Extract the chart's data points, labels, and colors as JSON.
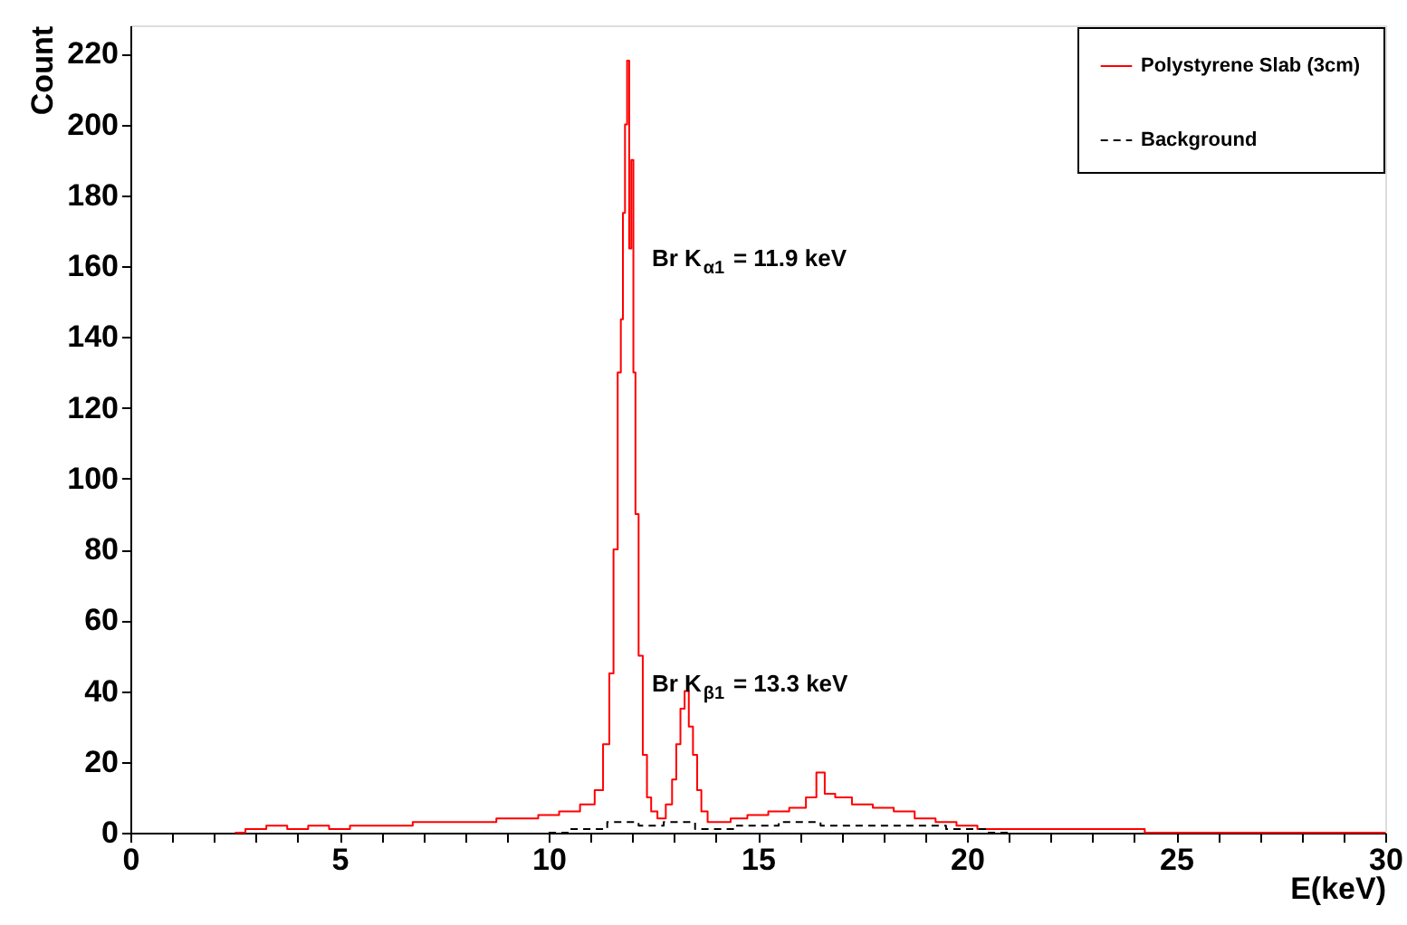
{
  "chart_data": {
    "type": "step",
    "xlabel": "E(keV)",
    "ylabel": "Count",
    "xlim": [
      0,
      30
    ],
    "ylim": [
      0,
      228
    ],
    "xticks": [
      0,
      {
        "value": 1,
        "label": null
      },
      {
        "value": 2,
        "label": null
      },
      {
        "value": 3,
        "label": null
      },
      {
        "value": 4,
        "label": null
      },
      5,
      {
        "value": 6,
        "label": null
      },
      {
        "value": 7,
        "label": null
      },
      {
        "value": 8,
        "label": null
      },
      {
        "value": 9,
        "label": null
      },
      10,
      {
        "value": 11,
        "label": null
      },
      {
        "value": 12,
        "label": null
      },
      {
        "value": 13,
        "label": null
      },
      {
        "value": 14,
        "label": null
      },
      15,
      {
        "value": 16,
        "label": null
      },
      {
        "value": 17,
        "label": null
      },
      {
        "value": 18,
        "label": null
      },
      {
        "value": 19,
        "label": null
      },
      20,
      {
        "value": 21,
        "label": null
      },
      {
        "value": 22,
        "label": null
      },
      {
        "value": 23,
        "label": null
      },
      {
        "value": 24,
        "label": null
      },
      25,
      {
        "value": 26,
        "label": null
      },
      {
        "value": 27,
        "label": null
      },
      {
        "value": 28,
        "label": null
      },
      {
        "value": 29,
        "label": null
      },
      30
    ],
    "yticks": [
      0,
      20,
      40,
      60,
      80,
      100,
      120,
      140,
      160,
      180,
      200,
      220
    ],
    "grid": false,
    "legend": "top right",
    "series": [
      {
        "name": "Polystyrene Slab (3cm)",
        "color": "#ff0000",
        "line_style": "solid",
        "x": [
          2.5,
          3,
          3.5,
          4,
          4.5,
          5,
          5.5,
          6,
          6.5,
          7,
          7.5,
          8,
          8.5,
          9,
          9.5,
          10,
          10.5,
          11,
          11.2,
          11.4,
          11.5,
          11.6,
          11.7,
          11.75,
          11.8,
          11.85,
          11.9,
          11.95,
          12.0,
          12.05,
          12.1,
          12.2,
          12.3,
          12.4,
          12.5,
          12.7,
          12.9,
          13.0,
          13.1,
          13.2,
          13.3,
          13.4,
          13.5,
          13.6,
          13.7,
          13.9,
          14.2,
          14.5,
          15,
          15.5,
          16,
          16.3,
          16.5,
          16.7,
          17,
          17.5,
          18,
          18.5,
          19,
          19.5,
          20,
          20.5,
          21,
          22,
          23,
          24,
          24.5,
          30
        ],
        "values": [
          0,
          1,
          2,
          1,
          2,
          1,
          2,
          2,
          2,
          3,
          3,
          3,
          3,
          4,
          4,
          5,
          6,
          8,
          12,
          25,
          45,
          80,
          130,
          145,
          175,
          200,
          218,
          165,
          190,
          130,
          90,
          50,
          22,
          10,
          6,
          4,
          8,
          15,
          25,
          35,
          40,
          30,
          22,
          12,
          6,
          3,
          3,
          4,
          5,
          6,
          7,
          10,
          17,
          11,
          10,
          8,
          7,
          6,
          4,
          3,
          2,
          1,
          1,
          1,
          1,
          1,
          0,
          0
        ]
      },
      {
        "name": "Background",
        "color": "#000000",
        "line_style": "dashed",
        "x": [
          10,
          11,
          11.8,
          12.5,
          13,
          14,
          15,
          16,
          17,
          18,
          19,
          20,
          21
        ],
        "values": [
          0,
          1,
          3,
          2,
          3,
          1,
          2,
          3,
          2,
          2,
          2,
          1,
          0
        ]
      }
    ],
    "annotations": [
      "Br K$_{α1}$ = 11.9 keV",
      "Br K$_{β1}$ = 13.3 keV"
    ]
  }
}
